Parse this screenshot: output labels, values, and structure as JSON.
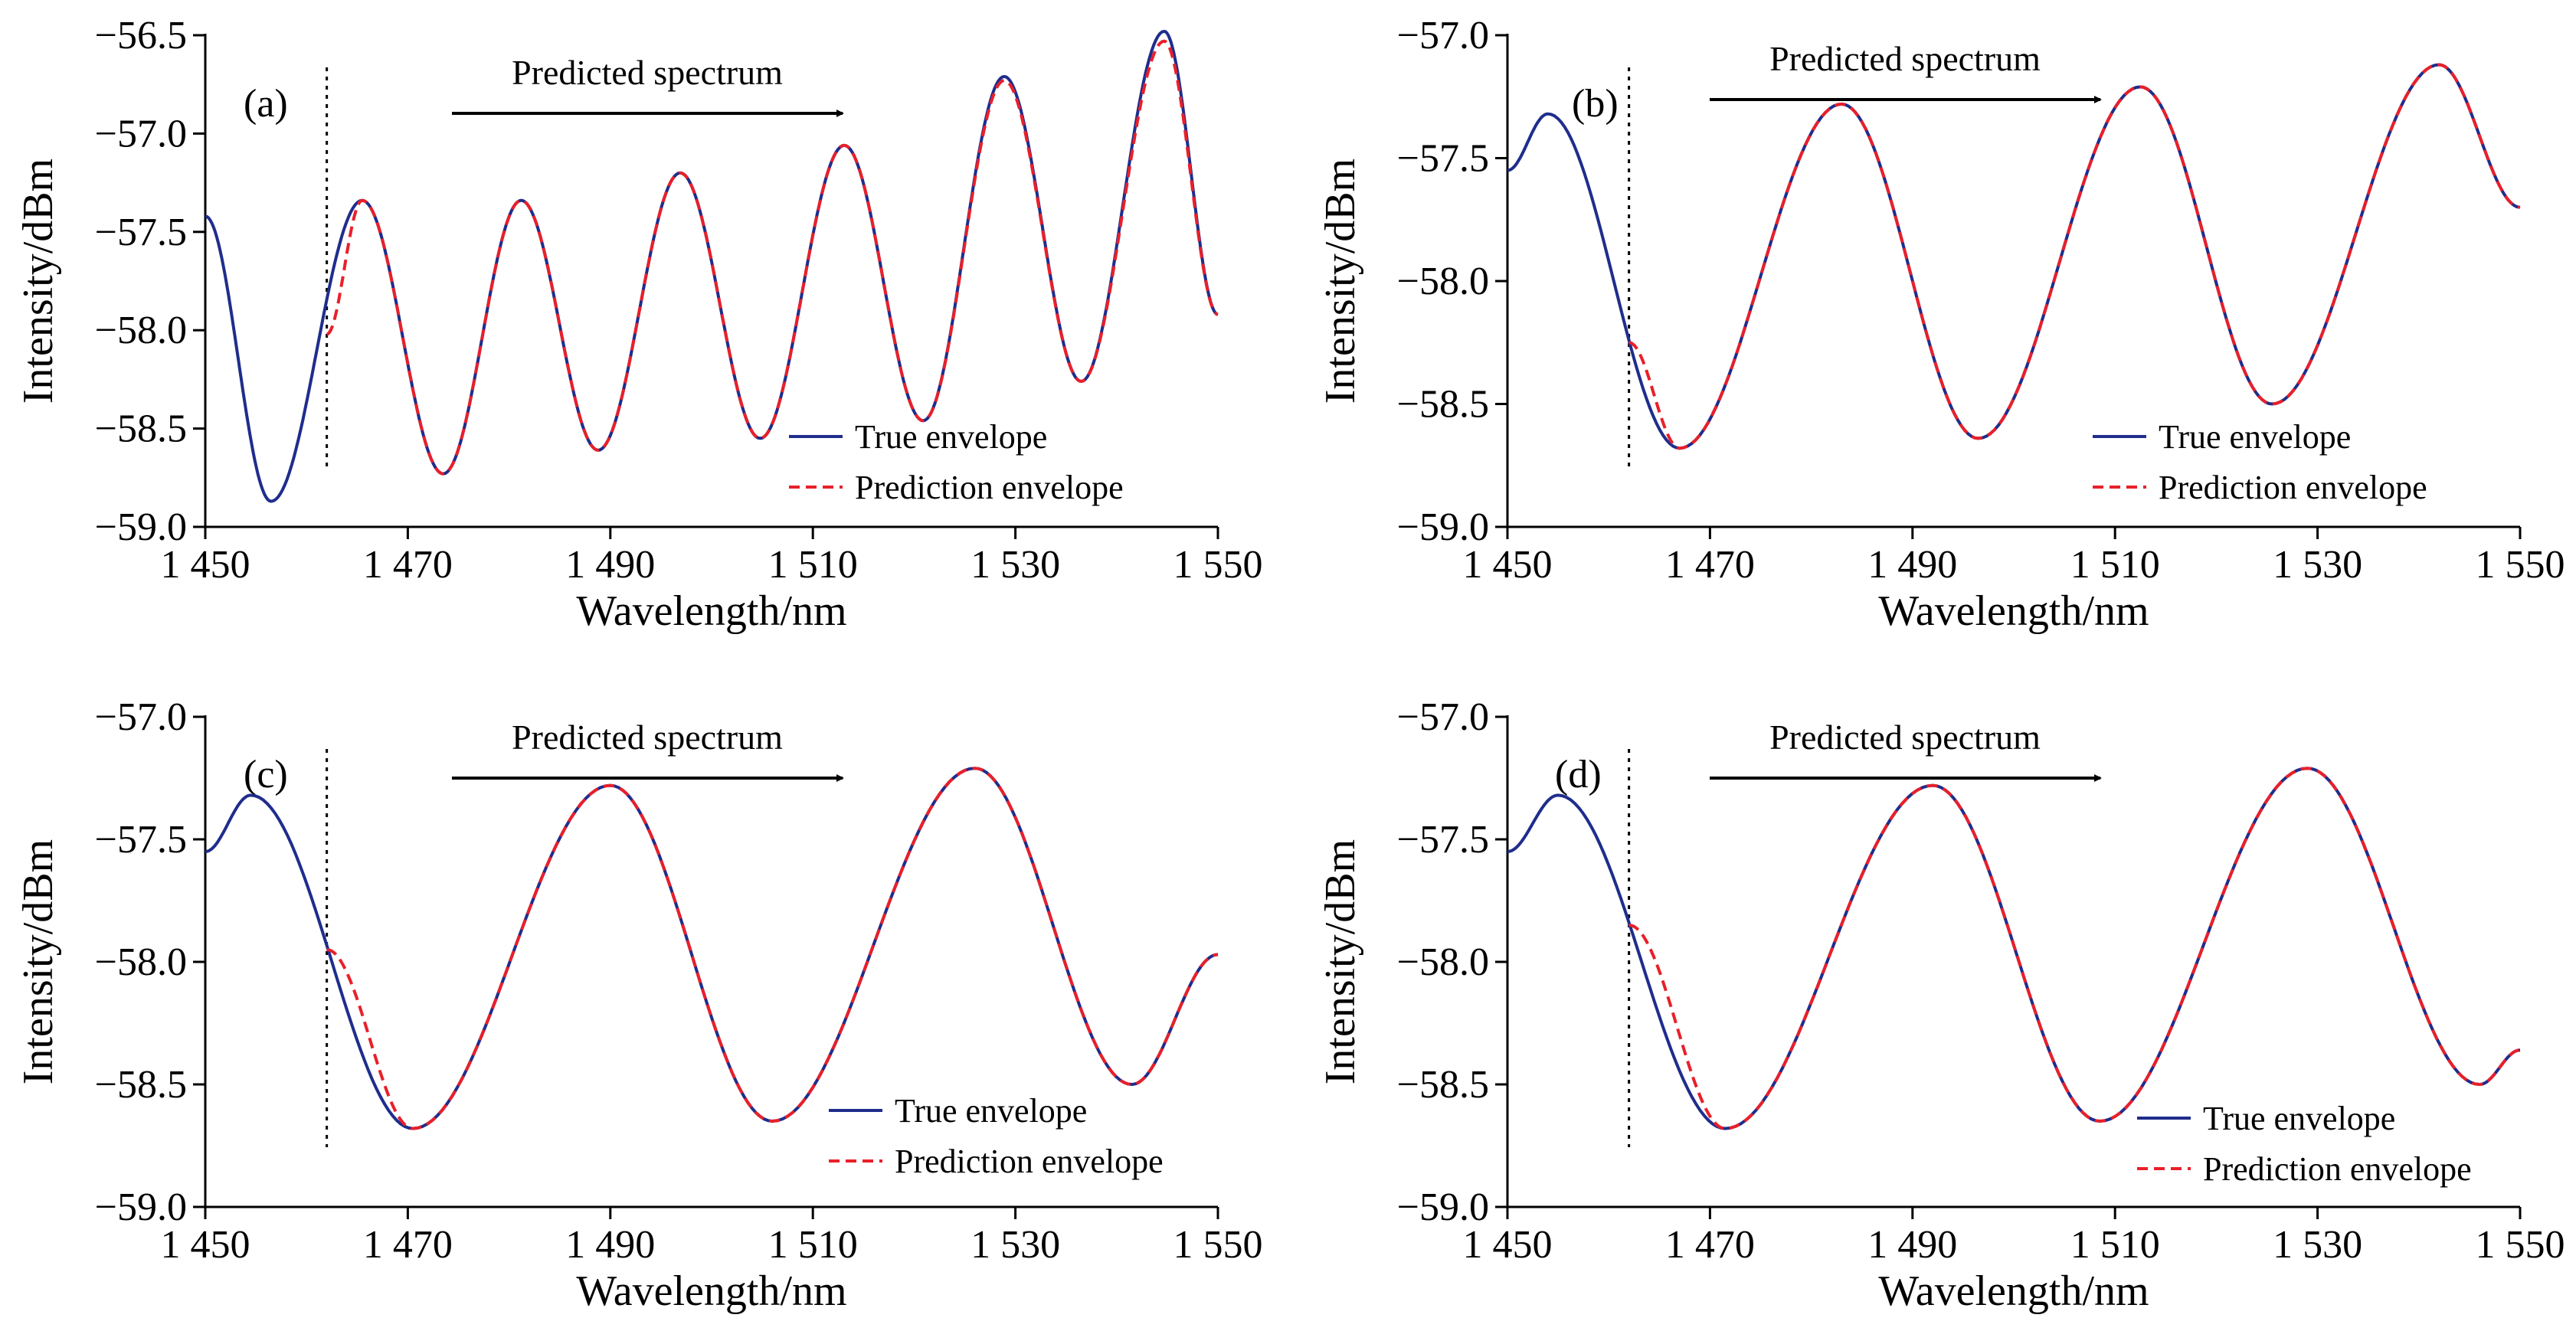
{
  "chart_data": [
    {
      "type": "line",
      "panel_label": "(a)",
      "xlabel": "Wavelength/nm",
      "ylabel": "Intensity/dBm",
      "xlim": [
        1450,
        1550
      ],
      "ylim": [
        -59.0,
        -56.5
      ],
      "xticks": [
        "1 450",
        "1 470",
        "1 490",
        "1 510",
        "1 530",
        "1 550"
      ],
      "yticks": [
        "−59.0",
        "−58.5",
        "−58.0",
        "−57.5",
        "−57.0",
        "−56.5"
      ],
      "annotation": "Predicted spectrum",
      "divider_x": 1462,
      "legend": {
        "position": "bottom-right",
        "entries": [
          "True envelope",
          "Prediction envelope"
        ]
      },
      "colors": {
        "true": "#1f2d8c",
        "prediction": "#e8202a"
      },
      "series": [
        {
          "name": "True envelope",
          "x": [
            1450,
            1456.5,
            1465.5,
            1473.5,
            1481.2,
            1488.8,
            1496.9,
            1504.8,
            1513.1,
            1520.9,
            1528.9,
            1536.5,
            1544.7,
            1550
          ],
          "y": [
            -57.42,
            -58.87,
            -57.34,
            -58.73,
            -57.34,
            -58.61,
            -57.2,
            -58.55,
            -57.06,
            -58.46,
            -56.71,
            -58.26,
            -56.48,
            -57.92
          ]
        },
        {
          "name": "Prediction envelope",
          "x": [
            1462,
            1465.5,
            1473.5,
            1481.2,
            1488.8,
            1496.9,
            1504.8,
            1513.1,
            1520.9,
            1528.9,
            1536.5,
            1544.7,
            1550
          ],
          "y": [
            -58.02,
            -57.34,
            -58.73,
            -57.34,
            -58.61,
            -57.2,
            -58.55,
            -57.06,
            -58.46,
            -56.73,
            -58.26,
            -56.53,
            -57.92
          ]
        }
      ]
    },
    {
      "type": "line",
      "panel_label": "(b)",
      "xlabel": "Wavelength/nm",
      "ylabel": "Intensity/dBm",
      "xlim": [
        1450,
        1550
      ],
      "ylim": [
        -59.0,
        -57.0
      ],
      "xticks": [
        "1 450",
        "1 470",
        "1 490",
        "1 510",
        "1 530",
        "1 550"
      ],
      "yticks": [
        "−59.0",
        "−58.5",
        "−58.0",
        "−57.5",
        "−57.0"
      ],
      "annotation": "Predicted spectrum",
      "divider_x": 1462,
      "legend": {
        "position": "bottom-right",
        "entries": [
          "True envelope",
          "Prediction envelope"
        ]
      },
      "colors": {
        "true": "#1f2d8c",
        "prediction": "#e8202a"
      },
      "series": [
        {
          "name": "True envelope",
          "x": [
            1450,
            1454,
            1467,
            1483,
            1496.5,
            1512.5,
            1525.5,
            1542,
            1550
          ],
          "y": [
            -57.55,
            -57.32,
            -58.68,
            -57.28,
            -58.64,
            -57.21,
            -58.5,
            -57.12,
            -57.7
          ]
        },
        {
          "name": "Prediction envelope",
          "x": [
            1462,
            1467,
            1483,
            1496.5,
            1512.5,
            1525.5,
            1542,
            1550
          ],
          "y": [
            -58.25,
            -58.68,
            -57.28,
            -58.64,
            -57.21,
            -58.5,
            -57.12,
            -57.7
          ]
        }
      ]
    },
    {
      "type": "line",
      "panel_label": "(c)",
      "xlabel": "Wavelength/nm",
      "ylabel": "Intensity/dBm",
      "xlim": [
        1450,
        1550
      ],
      "ylim": [
        -59.0,
        -57.0
      ],
      "xticks": [
        "1 450",
        "1 470",
        "1 490",
        "1 510",
        "1 530",
        "1 550"
      ],
      "yticks": [
        "−59.0",
        "−58.5",
        "−58.0",
        "−57.5",
        "−57.0"
      ],
      "annotation": "Predicted spectrum",
      "divider_x": 1462,
      "legend": {
        "position": "bottom-right",
        "entries": [
          "True envelope",
          "Prediction envelope"
        ]
      },
      "colors": {
        "true": "#1f2d8c",
        "prediction": "#e8202a"
      },
      "series": [
        {
          "name": "True envelope",
          "x": [
            1450,
            1454.5,
            1470.5,
            1490,
            1506,
            1526,
            1541.5,
            1550
          ],
          "y": [
            -57.55,
            -57.32,
            -58.68,
            -57.28,
            -58.65,
            -57.21,
            -58.5,
            -57.97
          ]
        },
        {
          "name": "Prediction envelope",
          "x": [
            1462,
            1470.5,
            1490,
            1506,
            1526,
            1541.5,
            1550
          ],
          "y": [
            -57.95,
            -58.68,
            -57.28,
            -58.65,
            -57.21,
            -58.5,
            -57.97
          ]
        }
      ]
    },
    {
      "type": "line",
      "panel_label": "(d)",
      "xlabel": "Wavelength/nm",
      "ylabel": "Intensity/dBm",
      "xlim": [
        1450,
        1550
      ],
      "ylim": [
        -59.0,
        -57.0
      ],
      "xticks": [
        "1 450",
        "1 470",
        "1 490",
        "1 510",
        "1 530",
        "1 550"
      ],
      "yticks": [
        "−59.0",
        "−58.5",
        "−58.0",
        "−57.5",
        "−57.0"
      ],
      "annotation": "Predicted spectrum",
      "divider_x": 1462,
      "legend": {
        "position": "bottom-right",
        "entries": [
          "True envelope",
          "Prediction envelope"
        ]
      },
      "colors": {
        "true": "#1f2d8c",
        "prediction": "#e8202a"
      },
      "series": [
        {
          "name": "True envelope",
          "x": [
            1450,
            1455,
            1471.5,
            1492,
            1508.5,
            1529,
            1546,
            1550
          ],
          "y": [
            -57.55,
            -57.32,
            -58.68,
            -57.28,
            -58.65,
            -57.21,
            -58.5,
            -58.36
          ]
        },
        {
          "name": "Prediction envelope",
          "x": [
            1462,
            1471.5,
            1492,
            1508.5,
            1529,
            1546,
            1550
          ],
          "y": [
            -57.85,
            -58.68,
            -57.28,
            -58.65,
            -57.21,
            -58.5,
            -58.36
          ]
        }
      ]
    }
  ]
}
